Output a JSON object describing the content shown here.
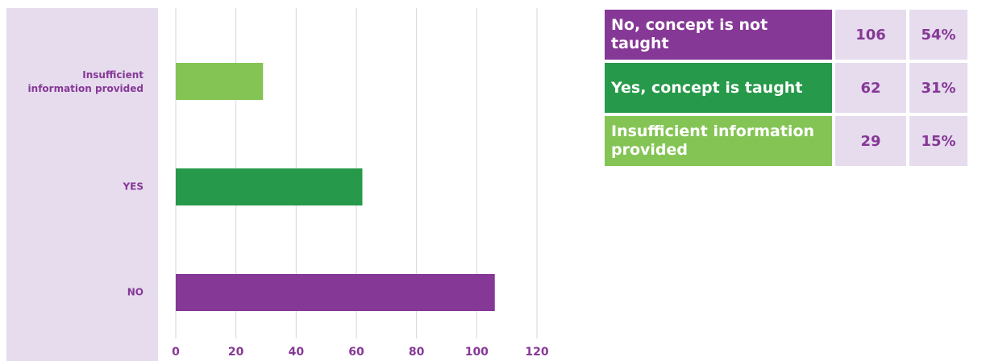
{
  "chart_data": {
    "type": "bar",
    "orientation": "horizontal",
    "categories": [
      "Insufficient information provided",
      "YES",
      "NO"
    ],
    "values": [
      29,
      62,
      106
    ],
    "colors": [
      "#84c455",
      "#27994a",
      "#863896"
    ],
    "xlim": [
      0,
      120
    ],
    "xticks": [
      0,
      20,
      40,
      60,
      80,
      100,
      120
    ],
    "grid": true
  },
  "table": {
    "rows": [
      [
        "No, concept is not taught",
        "106",
        "54%"
      ],
      [
        "Yes, concept is taught",
        "62",
        "31%"
      ],
      [
        "Insufficient information provided",
        "29",
        "15%"
      ]
    ],
    "colors": [
      "#863896",
      "#27994a",
      "#84c455"
    ]
  }
}
